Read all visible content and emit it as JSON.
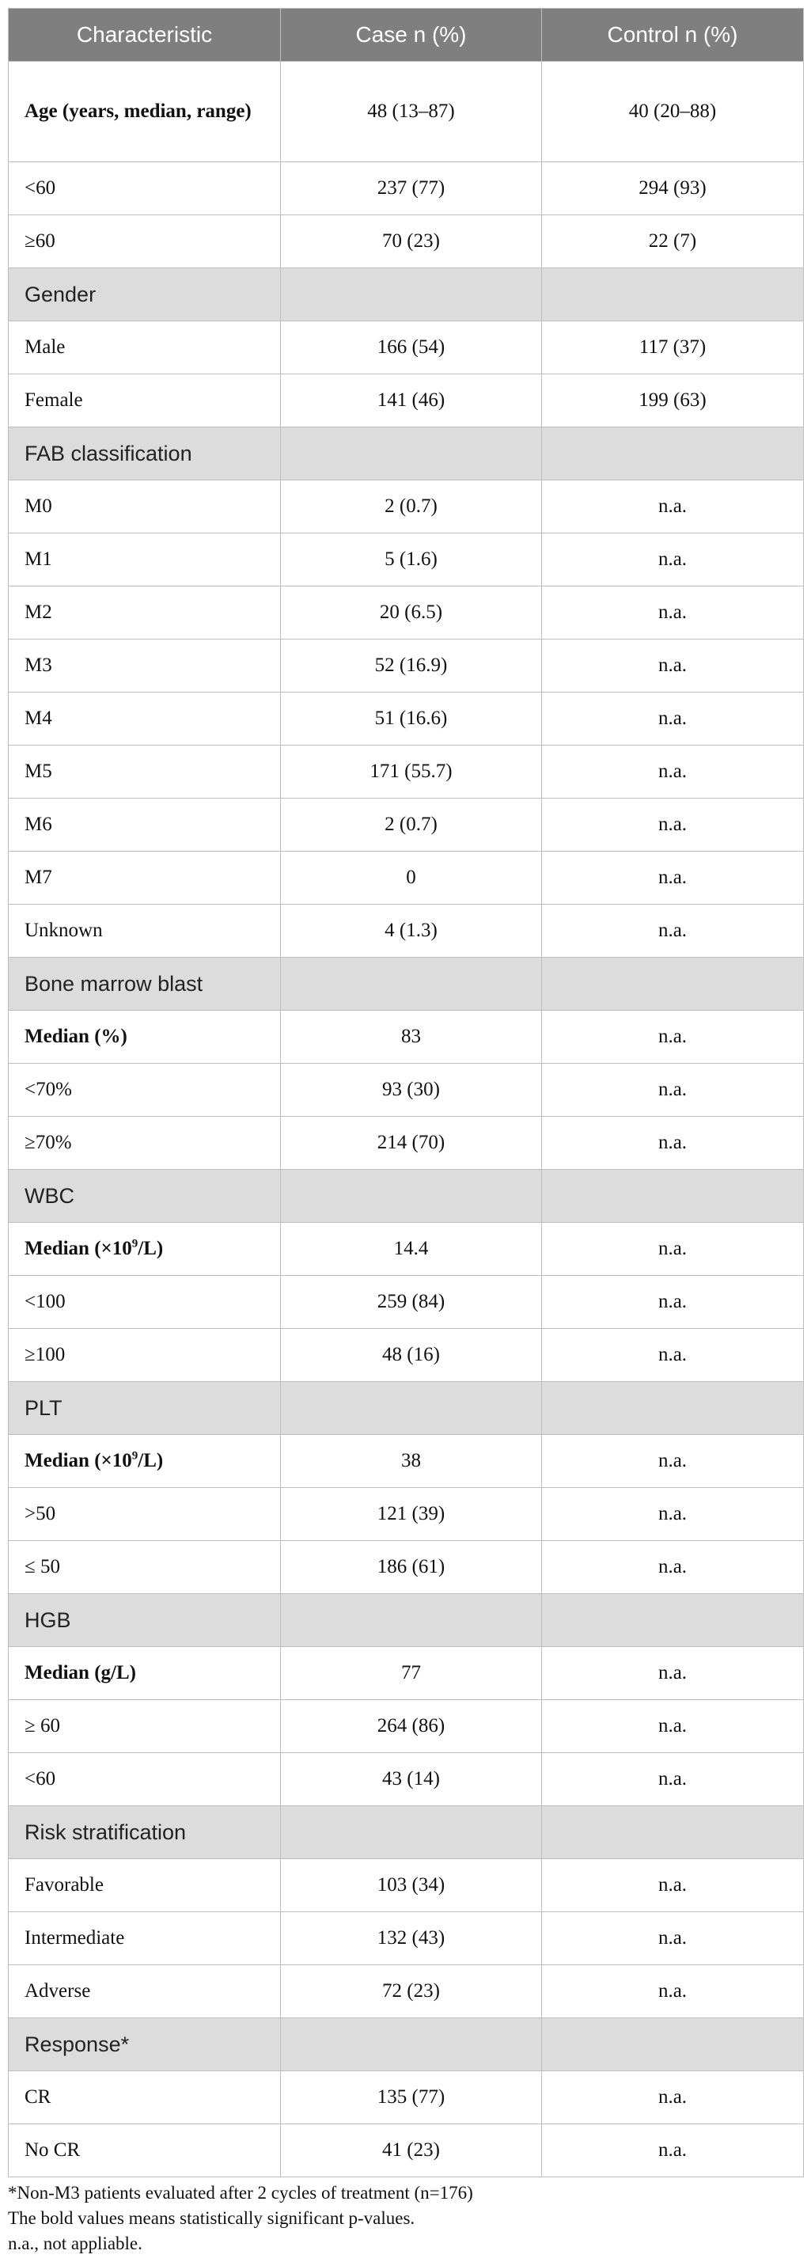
{
  "headers": [
    "Characteristic",
    "Case n (%)",
    "Control n (%)"
  ],
  "rows": [
    {
      "type": "row",
      "bold": true,
      "tall": true,
      "label": "Age (years, median, range)",
      "case": "48 (13–87)",
      "control": "40 (20–88)"
    },
    {
      "type": "row",
      "label": "<60",
      "case": "237 (77)",
      "control": "294 (93)"
    },
    {
      "type": "row",
      "label": "≥60",
      "case": "70 (23)",
      "control": "22 (7)"
    },
    {
      "type": "section",
      "label": "Gender"
    },
    {
      "type": "row",
      "label": "Male",
      "case": "166 (54)",
      "control": "117 (37)"
    },
    {
      "type": "row",
      "label": "Female",
      "case": "141 (46)",
      "control": "199 (63)"
    },
    {
      "type": "section",
      "label": "FAB classification"
    },
    {
      "type": "row",
      "label": "M0",
      "case": "2 (0.7)",
      "control": "n.a."
    },
    {
      "type": "row",
      "label": "M1",
      "case": "5 (1.6)",
      "control": "n.a."
    },
    {
      "type": "row",
      "label": "M2",
      "case": "20 (6.5)",
      "control": "n.a."
    },
    {
      "type": "row",
      "label": "M3",
      "case": "52 (16.9)",
      "control": "n.a."
    },
    {
      "type": "row",
      "label": "M4",
      "case": "51 (16.6)",
      "control": "n.a."
    },
    {
      "type": "row",
      "label": "M5",
      "case": "171 (55.7)",
      "control": "n.a."
    },
    {
      "type": "row",
      "label": "M6",
      "case": "2 (0.7)",
      "control": "n.a."
    },
    {
      "type": "row",
      "label": "M7",
      "case": "0",
      "control": "n.a."
    },
    {
      "type": "row",
      "label": "Unknown",
      "case": "4 (1.3)",
      "control": "n.a."
    },
    {
      "type": "section",
      "label": "Bone marrow blast"
    },
    {
      "type": "row",
      "bold": true,
      "label": "Median (%)",
      "case": "83",
      "control": "n.a."
    },
    {
      "type": "row",
      "label": "<70%",
      "case": "93 (30)",
      "control": "n.a."
    },
    {
      "type": "row",
      "label": "≥70%",
      "case": "214 (70)",
      "control": "n.a."
    },
    {
      "type": "section",
      "label": "WBC"
    },
    {
      "type": "row",
      "bold": true,
      "label": "Median (×10",
      "sup": "9",
      "label_after": "/L)",
      "case": "14.4",
      "control": "n.a."
    },
    {
      "type": "row",
      "label": "<100",
      "case": "259 (84)",
      "control": "n.a."
    },
    {
      "type": "row",
      "label": "≥100",
      "case": "48 (16)",
      "control": "n.a."
    },
    {
      "type": "section",
      "label": "PLT"
    },
    {
      "type": "row",
      "bold": true,
      "label": "Median (×10",
      "sup": "9",
      "label_after": "/L)",
      "case": "38",
      "control": "n.a."
    },
    {
      "type": "row",
      "label": ">50",
      "case": "121 (39)",
      "control": "n.a."
    },
    {
      "type": "row",
      "label": "≤ 50",
      "case": "186 (61)",
      "control": "n.a."
    },
    {
      "type": "section",
      "label": "HGB"
    },
    {
      "type": "row",
      "bold": true,
      "label": "Median (g/L)",
      "case": "77",
      "control": "n.a."
    },
    {
      "type": "row",
      "label": "≥ 60",
      "case": "264 (86)",
      "control": "n.a."
    },
    {
      "type": "row",
      "label": "<60",
      "case": "43 (14)",
      "control": "n.a."
    },
    {
      "type": "section",
      "label": "Risk stratification"
    },
    {
      "type": "row",
      "label": "Favorable",
      "case": "103 (34)",
      "control": "n.a."
    },
    {
      "type": "row",
      "label": "Intermediate",
      "case": "132 (43)",
      "control": "n.a."
    },
    {
      "type": "row",
      "label": "Adverse",
      "case": "72 (23)",
      "control": "n.a."
    },
    {
      "type": "section",
      "label": "Response*"
    },
    {
      "type": "row",
      "label": "CR",
      "case": "135 (77)",
      "control": "n.a."
    },
    {
      "type": "row",
      "label": "No CR",
      "case": "41 (23)",
      "control": "n.a."
    }
  ],
  "footnotes": [
    "*Non-M3 patients evaluated after 2 cycles of treatment (n=176)",
    "The bold values means statistically significant p-values.",
    "n.a., not appliable."
  ]
}
